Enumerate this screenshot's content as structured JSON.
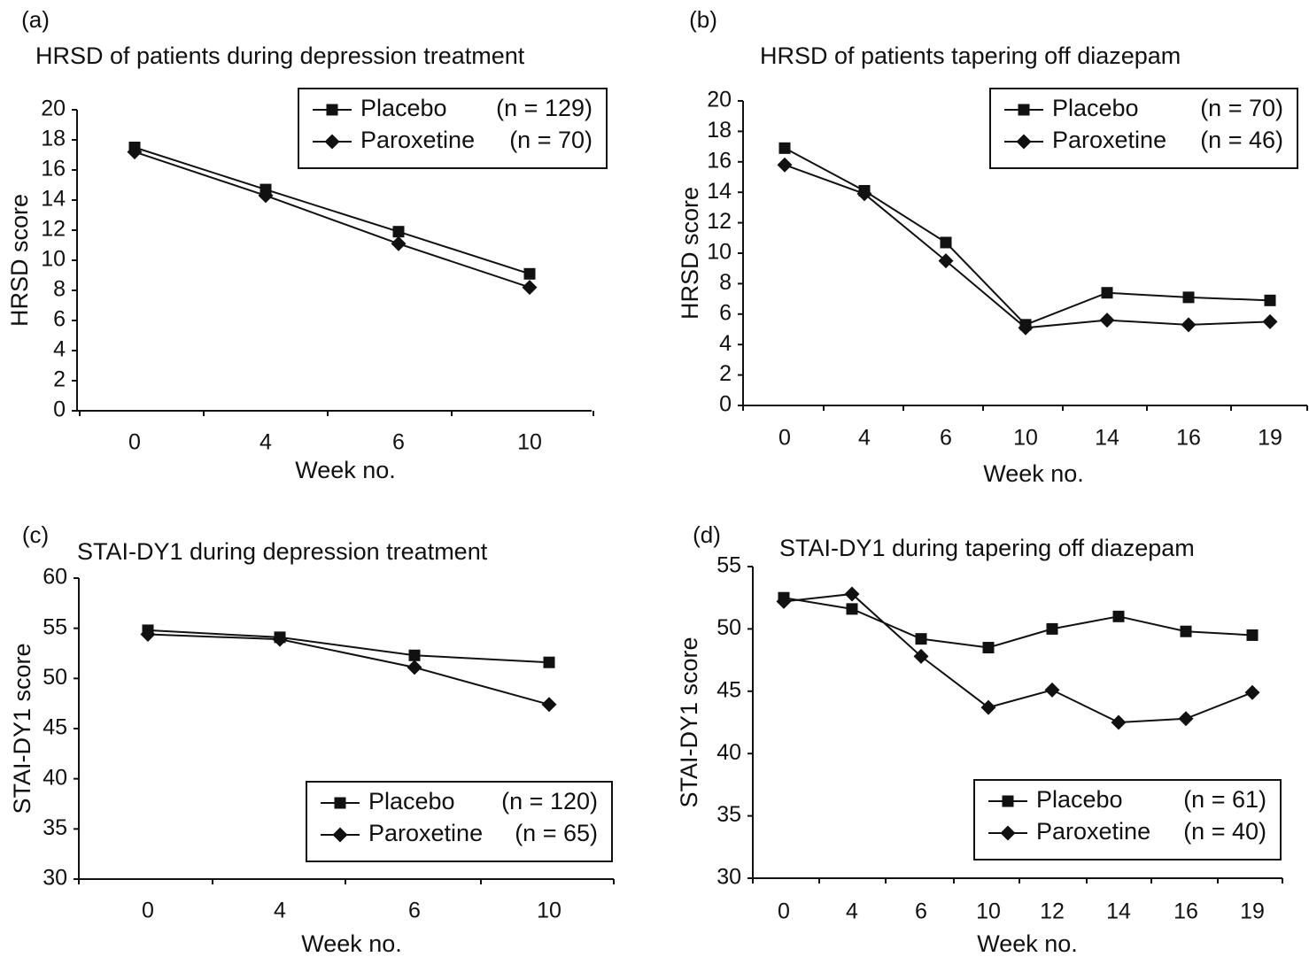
{
  "chart_data": [
    {
      "panel": "(a)",
      "type": "line",
      "title": "HRSD of patients during depression treatment",
      "xlabel": "Week no.",
      "ylabel": "HRSD score",
      "categories": [
        "0",
        "4",
        "6",
        "10"
      ],
      "ylim": [
        0,
        20
      ],
      "yticks": [
        0,
        2,
        4,
        6,
        8,
        10,
        12,
        14,
        16,
        18,
        20
      ],
      "grid": false,
      "legend_position": "top-right",
      "series": [
        {
          "name": "Placebo",
          "n_label": "(n = 129)",
          "marker": "square",
          "values": [
            17.5,
            14.7,
            11.9,
            9.1
          ]
        },
        {
          "name": "Paroxetine",
          "n_label": "(n = 70)",
          "marker": "diamond",
          "values": [
            17.2,
            14.3,
            11.1,
            8.2
          ]
        }
      ]
    },
    {
      "panel": "(b)",
      "type": "line",
      "title": "HRSD of patients tapering off diazepam",
      "xlabel": "Week no.",
      "ylabel": "HRSD score",
      "categories": [
        "0",
        "4",
        "6",
        "10",
        "14",
        "16",
        "19"
      ],
      "ylim": [
        0,
        20
      ],
      "yticks": [
        0,
        2,
        4,
        6,
        8,
        10,
        12,
        14,
        16,
        18,
        20
      ],
      "grid": false,
      "legend_position": "top-right",
      "series": [
        {
          "name": "Placebo",
          "n_label": "(n = 70)",
          "marker": "square",
          "values": [
            16.9,
            14.1,
            10.7,
            5.3,
            7.4,
            7.1,
            6.9
          ]
        },
        {
          "name": "Paroxetine",
          "n_label": "(n = 46)",
          "marker": "diamond",
          "values": [
            15.8,
            13.9,
            9.5,
            5.1,
            5.6,
            5.3,
            5.5
          ]
        }
      ]
    },
    {
      "panel": "(c)",
      "type": "line",
      "title": "STAI-DY1 during depression treatment",
      "xlabel": "Week no.",
      "ylabel": "STAI-DY1 score",
      "categories": [
        "0",
        "4",
        "6",
        "10"
      ],
      "ylim": [
        30,
        60
      ],
      "yticks": [
        30,
        35,
        40,
        45,
        50,
        55,
        60
      ],
      "grid": false,
      "legend_position": "bottom-right",
      "series": [
        {
          "name": "Placebo",
          "n_label": "(n = 120)",
          "marker": "square",
          "values": [
            54.8,
            54.1,
            52.3,
            51.6
          ]
        },
        {
          "name": "Paroxetine",
          "n_label": "(n = 65)",
          "marker": "diamond",
          "values": [
            54.4,
            53.9,
            51.1,
            47.4
          ]
        }
      ]
    },
    {
      "panel": "(d)",
      "type": "line",
      "title": "STAI-DY1  during tapering off diazepam",
      "xlabel": "Week no.",
      "ylabel": "STAI-DY1 score",
      "categories": [
        "0",
        "4",
        "6",
        "10",
        "12",
        "14",
        "16",
        "19"
      ],
      "ylim": [
        30,
        55
      ],
      "yticks": [
        30,
        35,
        40,
        45,
        50,
        55
      ],
      "grid": false,
      "legend_position": "bottom-right",
      "series": [
        {
          "name": "Placebo",
          "n_label": "(n = 61)",
          "marker": "square",
          "values": [
            52.5,
            51.6,
            49.2,
            48.5,
            50.0,
            51.0,
            49.8,
            49.5
          ]
        },
        {
          "name": "Paroxetine",
          "n_label": "(n = 40)",
          "marker": "diamond",
          "values": [
            52.2,
            52.8,
            47.8,
            43.7,
            45.1,
            42.5,
            42.8,
            44.9
          ]
        }
      ]
    }
  ]
}
